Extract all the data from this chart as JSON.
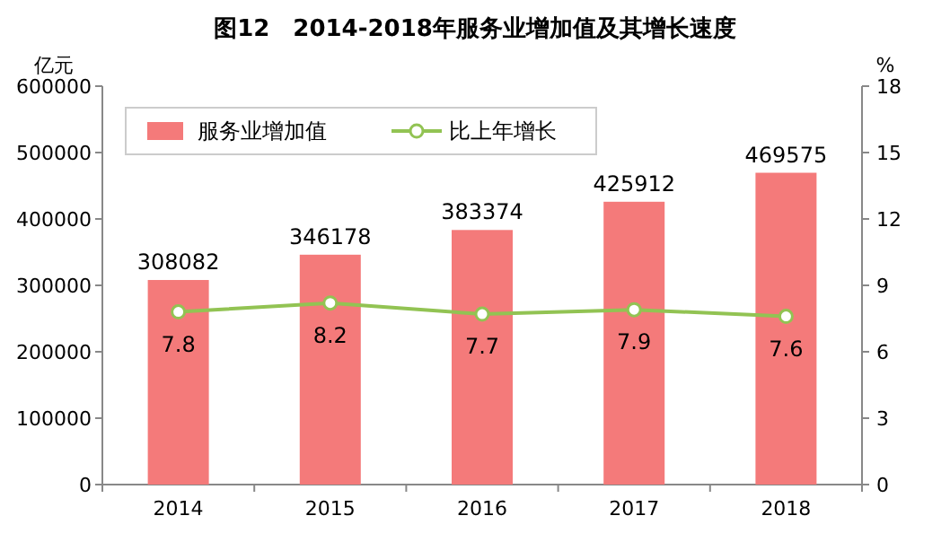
{
  "chart_data": {
    "type": "bar",
    "title": "图12　2014-2018年服务业增加值及其增长速度",
    "ylabel": "亿元",
    "y2label": "%",
    "categories": [
      "2014",
      "2015",
      "2016",
      "2017",
      "2018"
    ],
    "series": [
      {
        "name": "服务业增加值",
        "color": "#f47a7a",
        "values": [
          308082,
          346178,
          383374,
          425912,
          469575
        ]
      },
      {
        "name": "比上年增长",
        "type": "line",
        "axis": "y2",
        "color": "#92c353",
        "marker": "circle",
        "values": [
          7.8,
          8.2,
          7.7,
          7.9,
          7.6
        ]
      }
    ],
    "ylim": [
      0,
      600000
    ],
    "yticks": [
      0,
      100000,
      200000,
      300000,
      400000,
      500000,
      600000
    ],
    "y2lim": [
      0,
      18
    ],
    "y2ticks": [
      0,
      3,
      6,
      9,
      12,
      15,
      18
    ],
    "data_labels": true,
    "legend": "top left",
    "grid": false
  }
}
